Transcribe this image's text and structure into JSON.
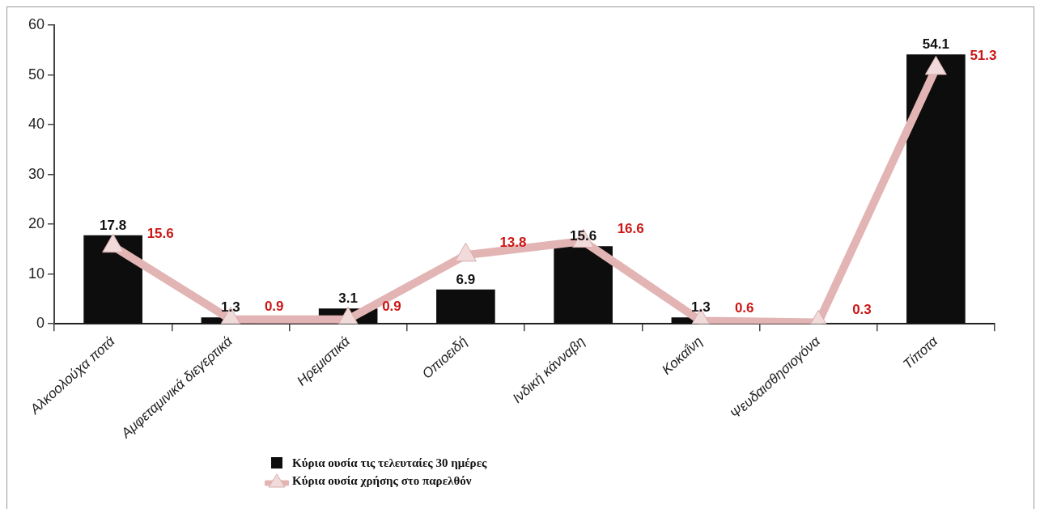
{
  "chart_data": {
    "type": "bar",
    "categories": [
      "Αλκοολούχα ποτά",
      "Αμφεταμινικά διεγερτικά",
      "Ηρεμιστικά",
      "Οπιοειδή",
      "Ινδική κάνναβη",
      "Κοκαΐνη",
      "Ψευδαισθησιογόνα",
      "Τίποτα"
    ],
    "series": [
      {
        "name": "Κύρια ουσία τις τελευταίες 30 ημέρες",
        "color": "#0d0d0d",
        "values": [
          17.8,
          1.3,
          3.1,
          6.9,
          15.6,
          1.3,
          null,
          54.1
        ]
      },
      {
        "name": "Κύρια ουσία χρήσης στο παρελθόν",
        "type": "line",
        "color": "#e3b4b4",
        "marker": "triangle",
        "values": [
          15.6,
          0.9,
          0.9,
          13.8,
          16.6,
          0.6,
          0.3,
          51.3
        ]
      }
    ],
    "ylim": [
      0,
      60
    ],
    "yticks": [
      0,
      10,
      20,
      30,
      40,
      50,
      60
    ],
    "data_labels": true,
    "legend": "bottom"
  }
}
